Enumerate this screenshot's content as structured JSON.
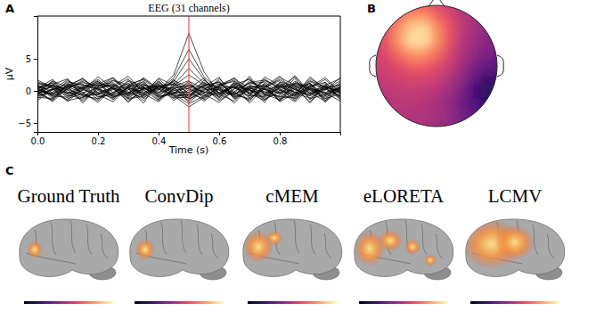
{
  "chart_data": [
    {
      "type": "line",
      "panel_label": "A",
      "title": "EEG (31 channels)",
      "x_label": "Time (s)",
      "y_label": "µV",
      "x": [
        0,
        0.05,
        0.1,
        0.15,
        0.2,
        0.25,
        0.3,
        0.35,
        0.4,
        0.45,
        0.5,
        0.55,
        0.6,
        0.65,
        0.7,
        0.75,
        0.8,
        0.85,
        0.9,
        0.95,
        1
      ],
      "xlim": [
        0,
        1
      ],
      "xticks": [
        {
          "value": 0,
          "label": "0.0"
        },
        0.2,
        0.4,
        0.6,
        0.8
      ],
      "ylim": [
        -6.4,
        11.7
      ],
      "yticks": [
        {
          "value": -5,
          "label": "−5"
        },
        0,
        5
      ],
      "color": "#000000",
      "vline": {
        "x": 0.5,
        "color": "#e8483a"
      },
      "series": [
        {
          "values": [
            0.3,
            -0.5,
            0.8,
            0.2,
            -0.6,
            0.4,
            -0.2,
            0.5,
            0.1,
            2.5,
            9.0,
            3.0,
            -0.4,
            0.6,
            -0.3,
            0.2,
            0.7,
            -0.5,
            0.3,
            -0.2,
            0.4
          ]
        },
        {
          "values": [
            0.1,
            0.6,
            -0.4,
            0.9,
            0.3,
            -0.7,
            0.5,
            -0.3,
            0.2,
            2.0,
            6.5,
            2.2,
            0.1,
            -0.5,
            0.4,
            0.8,
            -0.3,
            0.2,
            -0.6,
            0.5,
            0.1
          ]
        },
        {
          "values": [
            -0.4,
            0.2,
            1.1,
            -0.3,
            0.5,
            0.8,
            -0.9,
            0.4,
            -0.2,
            1.5,
            5.0,
            1.8,
            -0.3,
            0.6,
            0.2,
            -0.8,
            0.9,
            0.3,
            -0.4,
            0.7,
            -0.1
          ]
        },
        {
          "values": [
            0.8,
            -0.9,
            0.3,
            1.5,
            -0.5,
            0.2,
            1.2,
            -0.7,
            0.6,
            1.0,
            3.5,
            1.2,
            0.5,
            -1.0,
            0.8,
            0.3,
            -0.4,
            1.1,
            0.2,
            -0.7,
            0.5
          ]
        },
        {
          "values": [
            -1.2,
            0.4,
            -0.8,
            0.6,
            1.8,
            -0.3,
            0.7,
            1.4,
            -0.6,
            0.8,
            2.5,
            0.9,
            -0.7,
            1.2,
            -0.2,
            1.6,
            0.4,
            -0.9,
            0.8,
            1.3,
            -0.4
          ]
        },
        {
          "values": [
            0.5,
            1.3,
            -0.2,
            -1.1,
            0.7,
            2.0,
            -0.5,
            0.3,
            1.0,
            -0.4,
            1.5,
            0.4,
            1.1,
            -0.3,
            -1.4,
            0.6,
            1.8,
            0.2,
            -0.8,
            0.3,
            1.0
          ]
        },
        {
          "values": [
            0.2,
            -0.6,
            1.6,
            0.4,
            -1.3,
            0.9,
            0.3,
            -1.5,
            0.7,
            0.2,
            -1.2,
            -0.3,
            0.9,
            1.5,
            0.1,
            -1.1,
            0.6,
            2.2,
            -0.5,
            0.4,
            -0.9
          ]
        },
        {
          "values": [
            -0.7,
            0.9,
            0.1,
            -1.6,
            0.4,
            -0.5,
            1.7,
            0.6,
            -1.0,
            -0.5,
            -2.0,
            -0.8,
            0.4,
            -0.6,
            1.3,
            0.5,
            -1.5,
            0.3,
            1.2,
            -0.8,
            0.6
          ]
        },
        {
          "values": [
            1.0,
            -0.3,
            -1.4,
            0.7,
            1.2,
            -1.0,
            0.2,
            0.9,
            0.4,
            -0.7,
            -2.5,
            -1.0,
            -0.2,
            0.8,
            -0.9,
            1.9,
            0.2,
            -1.3,
            0.5,
            -0.4,
            1.4
          ]
        },
        {
          "values": [
            -0.3,
            1.5,
            0.6,
            -0.2,
            -1.8,
            0.5,
            -1.1,
            0.3,
            1.3,
            -0.2,
            -1.5,
            0.2,
            1.6,
            -1.2,
            0.5,
            -0.3,
            1.1,
            0.7,
            -1.9,
            0.9,
            -0.6
          ]
        },
        {
          "values": [
            0.6,
            -1.1,
            0.9,
            1.9,
            0.2,
            -1.4,
            0.8,
            -0.4,
            -1.7,
            0.5,
            0.8,
            0.6,
            -1.3,
            0.4,
            2.0,
            -0.6,
            -0.8,
            1.5,
            0.3,
            -1.0,
            0.2
          ]
        },
        {
          "values": [
            -0.9,
            0.3,
            -1.7,
            0.5,
            0.9,
            1.3,
            -0.6,
            2.1,
            0.3,
            -1.2,
            0.5,
            -0.9,
            0.7,
            1.7,
            -0.4,
            -1.5,
            0.9,
            -0.2,
            1.6,
            0.6,
            -1.3
          ]
        },
        {
          "values": [
            1.4,
            0.7,
            0.4,
            -0.9,
            -0.4,
            0.6,
            1.9,
            -1.2,
            0.8,
            1.1,
            -0.3,
            1.4,
            -0.5,
            -1.6,
            0.9,
            0.2,
            -1.0,
            0.6,
            1.1,
            -1.5,
            0.8
          ]
        },
        {
          "values": [
            -0.2,
            -1.4,
            1.2,
            0.3,
            1.5,
            -0.8,
            -0.3,
            0.7,
            -1.4,
            0.3,
            1.2,
            -0.5,
            -1.8,
            0.3,
            1.1,
            1.4,
            -0.2,
            -1.7,
            0.4,
            1.8,
            -0.3
          ]
        },
        {
          "values": [
            0.4,
            1.8,
            -0.6,
            -1.3,
            0.1,
            1.6,
            0.5,
            -0.9,
            1.6,
            -0.8,
            -0.6,
            0.9,
            1.3,
            -0.7,
            -1.2,
            0.7,
            2.3,
            -0.4,
            -1.1,
            0.2,
            1.6
          ]
        },
        {
          "values": [
            -1.5,
            0.2,
            0.7,
            1.1,
            -1.0,
            -0.2,
            1.0,
            1.8,
            -0.3,
            0.6,
            -1.8,
            0.1,
            0.6,
            2.1,
            -0.7,
            -0.9,
            0.5,
            1.2,
            0.7,
            -1.2,
            -0.5
          ]
        },
        {
          "values": [
            0.9,
            -0.8,
            -1.0,
            0.2,
            2.2,
            0.4,
            -1.6,
            0.1,
            0.9,
            -1.5,
            0.2,
            -1.6,
            0.3,
            -0.8,
            1.6,
            0.4,
            -1.2,
            -0.6,
            1.9,
            0.5,
            0.9
          ]
        },
        {
          "values": [
            -0.5,
            1.0,
            1.9,
            -0.7,
            -0.6,
            -1.7,
            0.6,
            -0.6,
            2.0,
            0.9,
            -0.9,
            1.2,
            -1.0,
            0.9,
            0.3,
            -1.8,
            1.4,
            0.8,
            -0.3,
            -1.6,
            0.3
          ]
        },
        {
          "values": [
            0.1,
            -1.7,
            0.5,
            1.3,
            0.8,
            1.0,
            -0.8,
            1.2,
            -0.8,
            -0.3,
            1.0,
            -0.4,
            1.9,
            -0.2,
            -1.6,
            1.1,
            -0.6,
            2.0,
            -1.4,
            1.1,
            -1.1
          ]
        },
        {
          "values": [
            1.7,
            0.5,
            -0.3,
            -0.5,
            -1.5,
            0.8,
            2.3,
            -0.2,
            0.5,
            1.4,
            -1.3,
            0.3,
            0.2,
            -1.9,
            0.6,
            0.9,
            -1.7,
            -0.3,
            0.6,
            2.1,
            -0.2
          ]
        },
        {
          "values": [
            -0.8,
            -0.2,
            1.4,
            0.9,
            0.3,
            -0.9,
            -0.4,
            1.6,
            -1.2,
            0.1,
            0.4,
            2.0,
            -1.1,
            1.0,
            1.8,
            -0.4,
            0.3,
            -1.5,
            0.9,
            -0.5,
            0.7
          ]
        },
        {
          "values": [
            0.3,
            1.2,
            -1.2,
            -0.4,
            1.4,
            0.3,
            -1.3,
            -0.8,
            1.1,
            -0.9,
            -0.4,
            -1.2,
            0.8,
            0.5,
            -0.8,
            2.2,
            0.8,
            0.5,
            -1.7,
            0.9,
            1.9
          ]
        },
        {
          "values": [
            -0.1,
            -0.4,
            0.8,
            -1.9,
            0.6,
            1.7,
            0.9,
            0.4,
            -0.4,
            1.8,
            -0.7,
            0.7,
            2.1,
            -1.3,
            0.2,
            -0.5,
            -1.4,
            1.3,
            0.4,
            -0.3,
            -1.6
          ]
        },
        {
          "values": [
            1.1,
            0.8,
            -0.5,
            0.6,
            -0.9,
            -0.6,
            0.4,
            -1.9,
            1.5,
            -0.6,
            0.9,
            -0.2,
            -0.6,
            1.2,
            -1.9,
            0.6,
            1.6,
            -0.8,
            1.3,
            -1.8,
            0.4
          ]
        },
        {
          "values": [
            -1.0,
            -1.2,
            0.3,
            1.7,
            0.4,
            1.1,
            -0.7,
            0.8,
            0.6,
            0.4,
            -0.9,
            1.7,
            -0.4,
            -0.5,
            0.7,
            -1.3,
            -0.2,
            2.4,
            -0.2,
            0.8,
            -0.9
          ]
        },
        {
          "values": [
            0.7,
            0.1,
            1.8,
            -0.8,
            -1.2,
            -0.4,
            1.5,
            0.2,
            -1.5,
            1.2,
            0.3,
            -0.7,
            1.0,
            1.9,
            0.4,
            -0.1,
            -0.9,
            -1.1,
            1.5,
            0.1,
            2.1
          ]
        },
        {
          "values": [
            -0.6,
            1.6,
            -0.9,
            0.1,
            1.1,
            2.1,
            -0.2,
            -1.1,
            0.9,
            -1.1,
            -1.0,
            0.5,
            -1.5,
            -0.1,
            1.3,
            1.7,
            0.6,
            -0.2,
            -0.7,
            1.4,
            -1.4
          ]
        },
        {
          "values": [
            0.2,
            -0.7,
            0.6,
            2.0,
            -0.3,
            -1.1,
            0.6,
            1.1,
            -0.7,
            0.7,
            1.6,
            -1.4,
            0.5,
            0.7,
            -1.1,
            0.3,
            2.1,
            0.9,
            -1.2,
            -0.6,
            0.6
          ]
        },
        {
          "values": [
            1.3,
            0.4,
            -1.5,
            -1.0,
            0.9,
            0.7,
            -1.2,
            -0.5,
            1.9,
            -0.2,
            -0.2,
            0.8,
            1.4,
            -1.0,
            0.2,
            -1.4,
            0.1,
            -0.7,
            2.2,
            0.3,
            -0.8
          ]
        },
        {
          "values": [
            -0.4,
            -1.5,
            1.0,
            0.4,
            1.6,
            -1.3,
            0.8,
            1.9,
            0.2,
            1.6,
            0.6,
            -0.1,
            -0.9,
            1.4,
            -0.5,
            1.2,
            -1.6,
            1.0,
            0.1,
            -1.3,
            1.2
          ]
        },
        {
          "values": [
            0.5,
            0.9,
            0.2,
            -0.6,
            -0.2,
            0.5,
            -1.8,
            0.6,
            -0.9,
            -0.3,
            -1.1,
            1.0,
            0.6,
            -0.4,
            2.3,
            -0.7,
            1.3,
            -1.2,
            0.9,
            0.7,
            -0.3
          ]
        }
      ]
    },
    {
      "type": "heatmap",
      "panel_label": "B",
      "color_range": [
        -3,
        6.5
      ],
      "cells": [
        [
          1,
          1.5,
          2,
          2.5,
          2.5,
          2,
          1.5,
          1,
          0.5,
          0.2,
          0
        ],
        [
          1.5,
          2,
          3,
          4,
          4,
          3,
          2,
          1.2,
          0.6,
          0.2,
          -0.2
        ],
        [
          1.8,
          2.5,
          4,
          5.5,
          5.8,
          4,
          2.5,
          1.3,
          0.5,
          0,
          -0.4
        ],
        [
          1.8,
          2.5,
          4.2,
          6,
          6,
          4.2,
          2.4,
          1.1,
          0.3,
          -0.3,
          -0.6
        ],
        [
          1.6,
          2.2,
          3.2,
          4.2,
          4.2,
          3.2,
          2,
          0.8,
          0,
          -0.6,
          -0.9
        ],
        [
          1.4,
          1.8,
          2.3,
          2.8,
          2.8,
          2.3,
          1.4,
          0.4,
          -0.6,
          -1.3,
          -1.4
        ],
        [
          1.2,
          1.5,
          1.7,
          1.9,
          1.9,
          1.6,
          0.8,
          -0.2,
          -1.4,
          -2.4,
          -2.2
        ],
        [
          1,
          1.2,
          1.3,
          1.4,
          1.3,
          1,
          0.3,
          -0.7,
          -2,
          -3,
          -2.6
        ],
        [
          0.8,
          1,
          1.1,
          1.1,
          1,
          0.7,
          0,
          -0.9,
          -1.9,
          -2.6,
          -2.3
        ],
        [
          0.6,
          0.8,
          0.9,
          0.9,
          0.8,
          0.5,
          0,
          -0.7,
          -1.4,
          -1.8,
          -1.6
        ],
        [
          0.5,
          0.6,
          0.7,
          0.7,
          0.6,
          0.4,
          0,
          -0.5,
          -0.9,
          -1.2,
          -1.1
        ]
      ]
    },
    {
      "type": "image",
      "panel_label": "C",
      "panels": [
        {
          "title": "Ground Truth"
        },
        {
          "title": "ConvDip"
        },
        {
          "title": "cMEM"
        },
        {
          "title": "eLORETA"
        },
        {
          "title": "LCMV"
        }
      ]
    }
  ]
}
